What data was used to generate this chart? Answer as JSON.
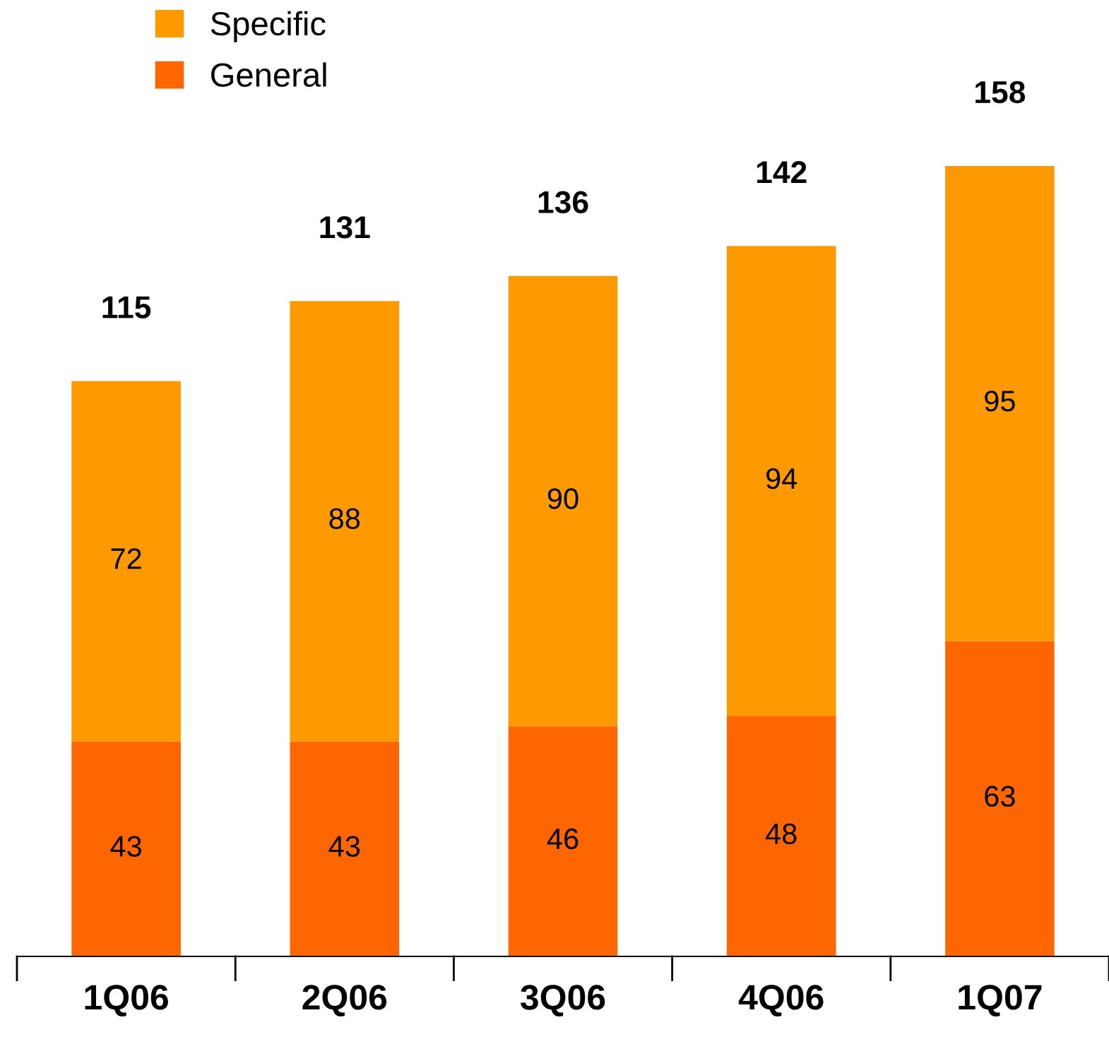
{
  "chart_data": {
    "type": "bar",
    "stacked": true,
    "categories": [
      "1Q06",
      "2Q06",
      "3Q06",
      "4Q06",
      "1Q07"
    ],
    "series": [
      {
        "name": "General",
        "color": "#ff6600",
        "values": [
          43,
          43,
          46,
          48,
          63
        ]
      },
      {
        "name": "Specific",
        "color": "#ff9900",
        "values": [
          72,
          88,
          90,
          94,
          95
        ]
      }
    ],
    "totals": [
      "115",
      "131",
      "136",
      "142",
      "158"
    ],
    "data_labels": true,
    "legend": "top left",
    "grid": false
  }
}
